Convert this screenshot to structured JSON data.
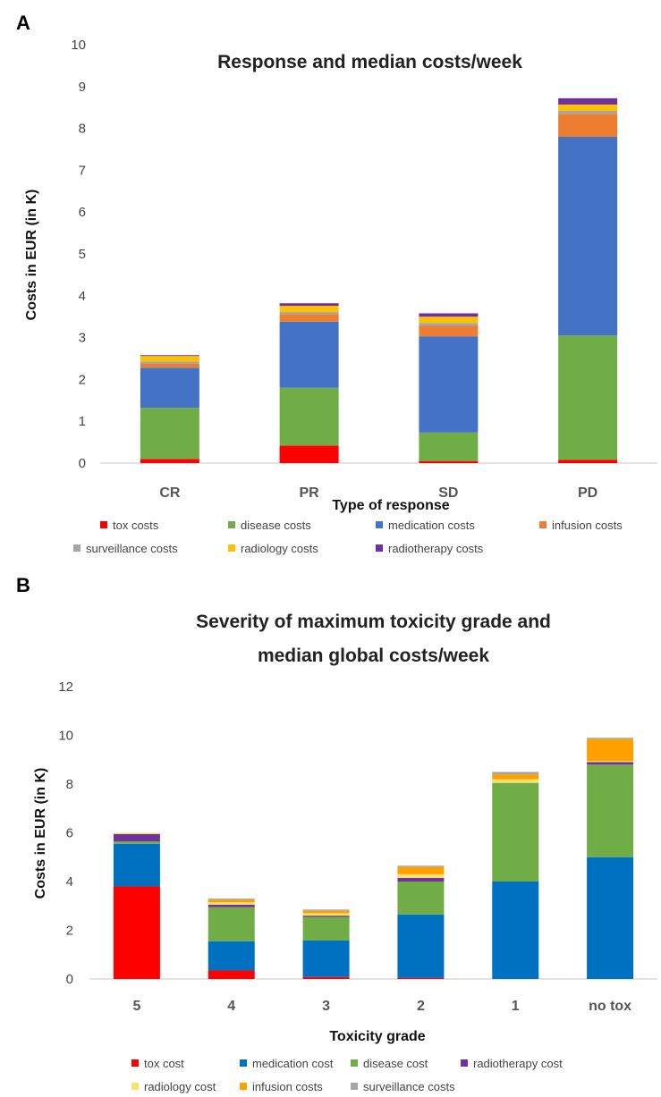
{
  "chart_data": [
    {
      "panel": "A",
      "type": "bar",
      "stacked": true,
      "title": "Response and median costs/week",
      "xlabel": "Type of response",
      "ylabel": "Costs in EUR (in K)",
      "ylim": [
        0,
        10
      ],
      "yticks": [
        0,
        1,
        2,
        3,
        4,
        5,
        6,
        7,
        8,
        9,
        10
      ],
      "grid": false,
      "legend_position": "bottom",
      "categories": [
        "CR",
        "PR",
        "SD",
        "PD"
      ],
      "series": [
        {
          "name": "tox costs",
          "color": "#ff0000",
          "values": [
            0.1,
            0.42,
            0.05,
            0.08
          ]
        },
        {
          "name": "disease costs",
          "color": "#70ad47",
          "values": [
            1.22,
            1.38,
            0.68,
            2.97
          ]
        },
        {
          "name": "medication costs",
          "color": "#4472c4",
          "values": [
            0.96,
            1.58,
            2.3,
            4.75
          ]
        },
        {
          "name": "infusion costs",
          "color": "#ed7d31",
          "values": [
            0.1,
            0.18,
            0.25,
            0.55
          ]
        },
        {
          "name": "surveillance costs",
          "color": "#a5a5a5",
          "values": [
            0.05,
            0.05,
            0.07,
            0.07
          ]
        },
        {
          "name": "radiology costs",
          "color": "#ffc000",
          "values": [
            0.13,
            0.15,
            0.15,
            0.15
          ]
        },
        {
          "name": "radiotherapy costs",
          "color": "#7030a0",
          "values": [
            0.02,
            0.06,
            0.08,
            0.15
          ]
        }
      ]
    },
    {
      "panel": "B",
      "type": "bar",
      "stacked": true,
      "title": "Severity of maximum toxicity grade and median global costs/week",
      "title_lines": [
        "Severity of maximum toxicity grade and",
        "median global costs/week"
      ],
      "xlabel": "Toxicity grade",
      "ylabel": "Costs in EUR (in K)",
      "ylim": [
        0,
        12
      ],
      "yticks": [
        0,
        2,
        4,
        6,
        8,
        10,
        12
      ],
      "grid": false,
      "legend_position": "bottom",
      "categories": [
        "5",
        "4",
        "3",
        "2",
        "1",
        "no tox"
      ],
      "series": [
        {
          "name": "tox cost",
          "color": "#ff0000",
          "values": [
            3.8,
            0.35,
            0.08,
            0.05,
            0,
            0
          ]
        },
        {
          "name": "medication cost",
          "color": "#0070c0",
          "values": [
            1.75,
            1.2,
            1.5,
            2.6,
            4.0,
            5.0
          ]
        },
        {
          "name": "disease cost",
          "color": "#70ad47",
          "values": [
            0.1,
            1.4,
            0.97,
            1.35,
            4.05,
            3.8
          ]
        },
        {
          "name": "radiotherapy cost",
          "color": "#7030a0",
          "values": [
            0.3,
            0.1,
            0.05,
            0.15,
            0,
            0.1
          ]
        },
        {
          "name": "radiology cost",
          "color": "#ffe066",
          "values": [
            0.05,
            0.1,
            0.1,
            0.15,
            0.15,
            0.05
          ]
        },
        {
          "name": "infusion costs",
          "color": "#ffa000",
          "values": [
            0,
            0.1,
            0.1,
            0.3,
            0.2,
            0.9
          ]
        },
        {
          "name": "surveillance costs",
          "color": "#a5a5a5",
          "values": [
            0,
            0.05,
            0.05,
            0.05,
            0.1,
            0.05
          ]
        }
      ]
    }
  ]
}
